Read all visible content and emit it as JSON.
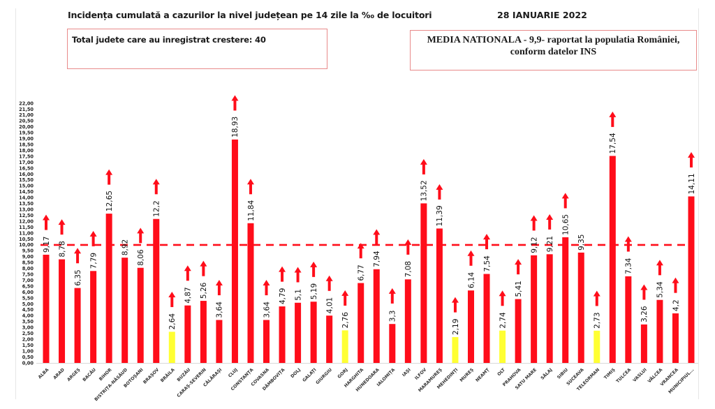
{
  "header": {
    "title": "Incidența cumulată a cazurilor la nivel județean pe 14 zile la ‰ de locuitori",
    "date": "28 IANUARIE 2022"
  },
  "info_boxes": {
    "left": "Total judete care au inregistrat crestere: 40",
    "right_line1": "MEDIA NATIONALA - 9,9-  raportat la populatia României,",
    "right_line2": "conform datelor INS"
  },
  "colors": {
    "bar_red": "#ff0d1a",
    "bar_yellow": "#ffff33",
    "arrow": "#ff0d1a",
    "average_line": "#ff0d1a"
  },
  "chart_data": {
    "type": "bar",
    "title": "Incidența cumulată a cazurilor la nivel județean pe 14 zile la ‰ de locuitori",
    "xlabel": "",
    "ylabel": "",
    "ylim": [
      0,
      22
    ],
    "y_ticks": [
      "0,00",
      "0,50",
      "1,00",
      "1,50",
      "2,00",
      "2,50",
      "3,00",
      "3,50",
      "4,00",
      "4,50",
      "5,00",
      "5,50",
      "6,00",
      "6,50",
      "7,00",
      "7,50",
      "8,00",
      "8,50",
      "9,00",
      "9,50",
      "10,00",
      "10,50",
      "11,00",
      "11,50",
      "12,00",
      "12,50",
      "13,00",
      "13,50",
      "14,00",
      "14,50",
      "15,00",
      "15,50",
      "16,00",
      "16,50",
      "17,00",
      "17,50",
      "18,00",
      "18,50",
      "19,00",
      "19,50",
      "20,00",
      "20,50",
      "21,00",
      "21,50",
      "22,00"
    ],
    "reference_line": {
      "value": 10,
      "style": "dashed"
    },
    "categories": [
      "ALBA",
      "ARAD",
      "ARGEȘ",
      "BACĂU",
      "BIHOR",
      "BISTRIȚA-NĂSĂUD",
      "BOTOȘANI",
      "BRAȘOV",
      "BRĂILA",
      "BUZĂU",
      "CARAȘ-SEVERIN",
      "CĂLĂRAȘI",
      "CLUJ",
      "CONSTANȚA",
      "COVASNA",
      "DÂMBOVIȚA",
      "DOLJ",
      "GALAȚI",
      "GIURGIU",
      "GORJ",
      "HARGHITA",
      "HUNEDOARA",
      "IALOMIȚA",
      "IAȘI",
      "ILFOV",
      "MARAMUREȘ",
      "MEHEDINȚI",
      "MUREȘ",
      "NEAMȚ",
      "OLT",
      "PRAHOVA",
      "SATU MARE",
      "SĂLAJ",
      "SIBIU",
      "SUCEAVA",
      "TELEORMAN",
      "TIMIȘ",
      "TULCEA",
      "VASLUI",
      "VÂLCEA",
      "VRANCEA",
      "MUNICIPIUL..."
    ],
    "category_labels": [
      "ALBA",
      "ARAD",
      "ARGEȘ",
      "BACĂU",
      "BIHOR",
      "BISTRIȚA-NĂSĂUD",
      "BOTOȘANI",
      "BRAȘOV",
      "BRĂILA",
      "BUZĂU",
      "CARAȘ-SEVERIN",
      "CĂLĂRAȘI",
      "CLUJ",
      "CONSTANȚA",
      "COVASNA",
      "DÂMBOVIȚA",
      "DOLJ",
      "GALAȚI",
      "GIURGIU",
      "GORJ",
      "HARGHITA",
      "HUNEDOARA",
      "IALOMIȚA",
      "IAȘI",
      "ILFOV",
      "MARAMUREȘ",
      "MEHEDINȚI",
      "MUREȘ",
      "NEAMȚ",
      "OLT",
      "PRAHOVA",
      "SATU MARE",
      "SĂLAJ",
      "SIBIU",
      "SUCEAVA",
      "TELEORMAN",
      "TIMIȘ",
      "TULCEA",
      "VASLUI",
      "VÂLCEA",
      "VRANCEA",
      "MUNICIPIUL..."
    ],
    "values": [
      9.17,
      8.78,
      6.35,
      7.79,
      12.65,
      8.92,
      8.06,
      12.2,
      2.64,
      4.87,
      5.26,
      3.64,
      18.93,
      11.84,
      3.64,
      4.79,
      5.1,
      5.19,
      4.01,
      2.76,
      6.77,
      7.94,
      3.3,
      7.08,
      13.52,
      11.39,
      2.19,
      6.14,
      7.54,
      2.74,
      5.41,
      9.12,
      9.21,
      10.65,
      9.35,
      2.73,
      17.54,
      7.34,
      3.26,
      5.34,
      4.2,
      14.11
    ],
    "value_labels": [
      "9,17",
      "8,78",
      "6,35",
      "7,79",
      "12,65",
      "8,92",
      "8,06",
      "12,2",
      "2,64",
      "4,87",
      "5,26",
      "3,64",
      "18,93",
      "11,84",
      "3,64",
      "4,79",
      "5,1",
      "5,19",
      "4,01",
      "2,76",
      "6,77",
      "7,94",
      "3,3",
      "7,08",
      "13,52",
      "11,39",
      "2,19",
      "6,14",
      "7,54",
      "2,74",
      "5,41",
      "9,12",
      "9,21",
      "10,65",
      "9,35",
      "2,73",
      "17,54",
      "7,34",
      "3,26",
      "5,34",
      "4,2",
      "14,11"
    ],
    "bar_color_class": [
      "red",
      "red",
      "red",
      "red",
      "red",
      "red",
      "red",
      "red",
      "yellow",
      "red",
      "red",
      "red",
      "red",
      "red",
      "red",
      "red",
      "red",
      "red",
      "red",
      "yellow",
      "red",
      "red",
      "red",
      "red",
      "red",
      "red",
      "yellow",
      "red",
      "red",
      "yellow",
      "red",
      "red",
      "red",
      "red",
      "red",
      "yellow",
      "red",
      "red",
      "red",
      "red",
      "red",
      "red"
    ],
    "trend_arrow": [
      "up",
      "up",
      "up",
      "up",
      "up",
      "none",
      "up",
      "up",
      "up",
      "up",
      "up",
      "up",
      "up",
      "up",
      "up",
      "up",
      "up",
      "up",
      "up",
      "up",
      "up",
      "up",
      "up",
      "up",
      "up",
      "up",
      "up",
      "up",
      "up",
      "up",
      "up",
      "up",
      "up",
      "up",
      "none",
      "up",
      "up",
      "up",
      "up",
      "up",
      "up",
      "up"
    ],
    "legend": null,
    "grid": false
  }
}
